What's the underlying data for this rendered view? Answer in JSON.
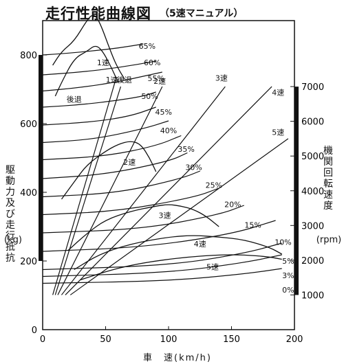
{
  "title": "走行性能曲線図",
  "subtitle": "（5速マニュアル）",
  "chart_data": {
    "type": "line",
    "xlabel": "車　速(km/h)",
    "ylabel_left": "駆動力及び走行抵抗",
    "ylabel_left_unit": "(kg)",
    "ylabel_right": "機関回転速度",
    "ylabel_right_unit": "(rpm)",
    "xlim": [
      0,
      200
    ],
    "ylim": [
      0,
      900
    ],
    "y2lim": [
      0,
      8900
    ],
    "xticks": [
      "0",
      "50",
      "100",
      "150",
      "200"
    ],
    "yticks": [
      "0",
      "200",
      "400",
      "600",
      "800"
    ],
    "y2ticks": [
      "1000",
      "2000",
      "3000",
      "4000",
      "5000",
      "6000",
      "7000"
    ],
    "resistance_curves": [
      {
        "name": "65%",
        "x": [
          0,
          20,
          40,
          60,
          80
        ],
        "y": [
          800,
          805,
          812,
          820,
          832
        ]
      },
      {
        "name": "60%",
        "x": [
          0,
          30,
          60,
          90
        ],
        "y": [
          742,
          750,
          763,
          782
        ]
      },
      {
        "name": "55%",
        "x": [
          0,
          30,
          60,
          80,
          95
        ],
        "y": [
          695,
          705,
          722,
          738,
          750
        ]
      },
      {
        "name": "50%",
        "x": [
          0,
          30,
          60,
          80,
          90
        ],
        "y": [
          648,
          655,
          668,
          680,
          692
        ]
      },
      {
        "name": "45%",
        "x": [
          0,
          40,
          70,
          90
        ],
        "y": [
          596,
          605,
          622,
          648
        ]
      },
      {
        "name": "40%",
        "x": [
          0,
          40,
          80,
          100
        ],
        "y": [
          545,
          554,
          585,
          608
        ]
      },
      {
        "name": "35%",
        "x": [
          0,
          50,
          90,
          110
        ],
        "y": [
          495,
          505,
          535,
          565
        ]
      },
      {
        "name": "30%",
        "x": [
          0,
          50,
          100,
          115
        ],
        "y": [
          440,
          452,
          490,
          515
        ]
      },
      {
        "name": "25%",
        "x": [
          0,
          60,
          110,
          125
        ],
        "y": [
          387,
          398,
          440,
          462
        ]
      },
      {
        "name": "20%",
        "x": [
          0,
          60,
          120,
          140
        ],
        "y": [
          335,
          345,
          385,
          412
        ]
      },
      {
        "name": "15%",
        "x": [
          0,
          80,
          140,
          160
        ],
        "y": [
          282,
          293,
          335,
          362
        ]
      },
      {
        "name": "10%",
        "x": [
          0,
          80,
          150,
          185
        ],
        "y": [
          228,
          240,
          278,
          318
        ]
      },
      {
        "name": "5%",
        "x": [
          0,
          100,
          160,
          190
        ],
        "y": [
          175,
          187,
          222,
          252
        ]
      },
      {
        "name": "3%",
        "x": [
          0,
          100,
          160,
          190
        ],
        "y": [
          155,
          166,
          195,
          218
        ]
      },
      {
        "name": "0%",
        "x": [
          0,
          100,
          160,
          190
        ],
        "y": [
          135,
          142,
          162,
          178
        ]
      }
    ],
    "driving_force_curves": [
      {
        "name": "1速",
        "x": [
          8,
          15,
          25,
          35,
          40,
          45,
          55,
          60,
          65
        ],
        "y": [
          770,
          810,
          840,
          900,
          920,
          900,
          800,
          760,
          730
        ]
      },
      {
        "name": "後退",
        "x": [
          10,
          15,
          25,
          35,
          42,
          48,
          55,
          60
        ],
        "y": [
          680,
          720,
          790,
          810,
          830,
          810,
          760,
          720
        ]
      },
      {
        "name": "2速",
        "x": [
          15,
          25,
          35,
          50,
          60,
          70,
          78,
          85,
          90
        ],
        "y": [
          380,
          430,
          480,
          520,
          540,
          550,
          540,
          500,
          460
        ]
      },
      {
        "name": "3速",
        "x": [
          20,
          35,
          50,
          70,
          90,
          100,
          110,
          120,
          130,
          140
        ],
        "y": [
          230,
          280,
          320,
          345,
          360,
          365,
          360,
          350,
          330,
          300
        ]
      },
      {
        "name": "4速",
        "x": [
          25,
          45,
          70,
          100,
          120,
          140,
          160,
          180,
          190
        ],
        "y": [
          175,
          220,
          250,
          270,
          275,
          270,
          262,
          240,
          220
        ]
      },
      {
        "name": "5速",
        "x": [
          30,
          55,
          80,
          110,
          140,
          160,
          180,
          190
        ],
        "y": [
          145,
          175,
          195,
          210,
          218,
          218,
          212,
          205
        ]
      }
    ],
    "engine_speed_lines": [
      {
        "name": "1速",
        "x": [
          8,
          58
        ],
        "y2": [
          1000,
          7200
        ]
      },
      {
        "name": "1速 後退",
        "x": [
          10,
          62
        ],
        "y2": [
          1000,
          7000
        ]
      },
      {
        "name": "2速",
        "x": [
          12,
          95
        ],
        "y2": [
          1000,
          7000
        ]
      },
      {
        "name": "3速",
        "x": [
          15,
          145
        ],
        "y2": [
          1000,
          7000
        ]
      },
      {
        "name": "4速",
        "x": [
          18,
          182
        ],
        "y2": [
          1000,
          7000
        ]
      },
      {
        "name": "5速",
        "x": [
          22,
          195
        ],
        "y2": [
          1000,
          5500
        ]
      }
    ],
    "labels": [
      {
        "text": "65%",
        "x": 83,
        "y": 818
      },
      {
        "text": "60%",
        "x": 87,
        "y": 770
      },
      {
        "text": "55%",
        "x": 90,
        "y": 724
      },
      {
        "text": "50%",
        "x": 85,
        "y": 672
      },
      {
        "text": "45%",
        "x": 96,
        "y": 626
      },
      {
        "text": "40%",
        "x": 100,
        "y": 572
      },
      {
        "text": "35%",
        "x": 114,
        "y": 518
      },
      {
        "text": "30%",
        "x": 120,
        "y": 465
      },
      {
        "text": "25%",
        "x": 136,
        "y": 413
      },
      {
        "text": "20%",
        "x": 151,
        "y": 357
      },
      {
        "text": "15%",
        "x": 167,
        "y": 297
      },
      {
        "text": "10%",
        "x": 191,
        "y": 247
      },
      {
        "text": "5%",
        "x": 195,
        "y": 192
      },
      {
        "text": "3%",
        "x": 195,
        "y": 150
      },
      {
        "text": "0%",
        "x": 195,
        "y": 108
      },
      {
        "text": "1速",
        "x": 48,
        "y": 770
      },
      {
        "text": "1速",
        "x": 55,
        "y": 720
      },
      {
        "text": "後退",
        "x": 65,
        "y": 720
      },
      {
        "text": "後退",
        "x": 25,
        "y": 663
      },
      {
        "text": "2速",
        "x": 93,
        "y": 716
      },
      {
        "text": "3速",
        "x": 142,
        "y": 725
      },
      {
        "text": "4速",
        "x": 187,
        "y": 683
      },
      {
        "text": "5速",
        "x": 187,
        "y": 567
      },
      {
        "text": "2速",
        "x": 69,
        "y": 480
      },
      {
        "text": "3速",
        "x": 97,
        "y": 325
      },
      {
        "text": "4速",
        "x": 125,
        "y": 242
      },
      {
        "text": "5速",
        "x": 135,
        "y": 175
      }
    ]
  }
}
